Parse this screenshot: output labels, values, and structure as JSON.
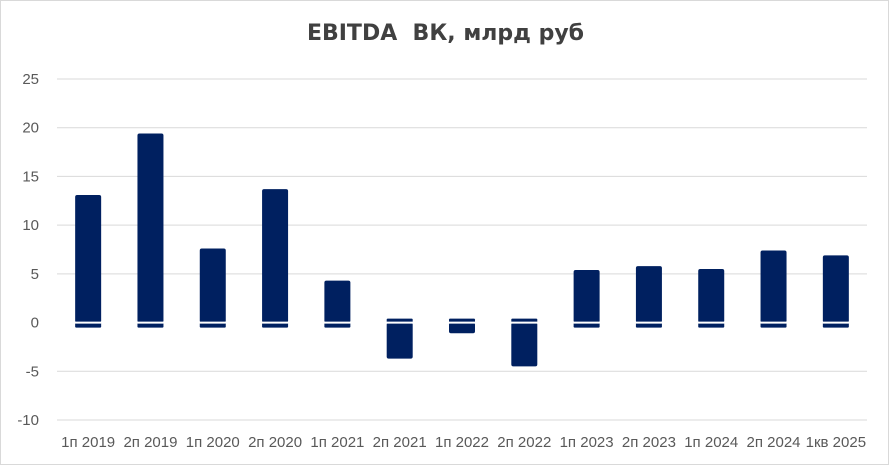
{
  "chart_data": {
    "type": "bar",
    "title": "EBITDA  ВК, млрд руб",
    "categories": [
      "1п 2019",
      "2п 2019",
      "1п 2020",
      "2п 2020",
      "1п 2021",
      "2п 2021",
      "1п 2022",
      "2п 2022",
      "1п 2023",
      "2п 2023",
      "1п 2024",
      "2п 2024",
      "1кв 2025"
    ],
    "values": [
      13.1,
      19.4,
      7.6,
      13.7,
      4.3,
      -3.7,
      -1.1,
      -4.5,
      5.4,
      5.8,
      5.5,
      7.4,
      6.9
    ],
    "ylim": [
      -10,
      25
    ],
    "yticks": [
      "25",
      "20",
      "15",
      "10",
      "5",
      "0",
      "-5",
      "-10"
    ],
    "grid": true,
    "bar_color": "#002060",
    "xlabel": "",
    "ylabel": ""
  }
}
